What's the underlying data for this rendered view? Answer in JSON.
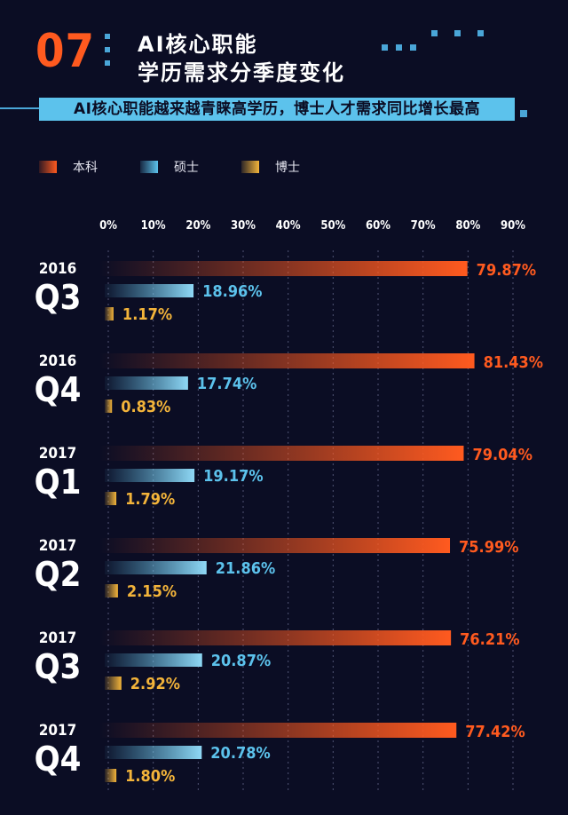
{
  "header": {
    "number": "07",
    "title_line1": "AI核心职能",
    "title_line2": "学历需求分季度变化",
    "subtitle": "AI核心职能越来越青睐高学历，博士人才需求同比增长最高"
  },
  "colors": {
    "background": "#0b0d24",
    "accent_orange": "#ff5a1f",
    "accent_blue": "#5cc2ec",
    "accent_gold": "#f3b43a"
  },
  "legend": [
    {
      "label": "本科",
      "color": "#ff5a1f"
    },
    {
      "label": "硕士",
      "color": "#5cc2ec"
    },
    {
      "label": "博士",
      "color": "#f3b43a"
    }
  ],
  "chart_data": {
    "type": "bar",
    "orientation": "horizontal",
    "xlim": [
      0,
      90
    ],
    "xticks": [
      "0%",
      "10%",
      "20%",
      "30%",
      "40%",
      "50%",
      "60%",
      "70%",
      "80%",
      "90%"
    ],
    "series_names": [
      "本科",
      "硕士",
      "博士"
    ],
    "categories": [
      {
        "year": "2016",
        "quarter": "Q3",
        "values": [
          79.87,
          18.96,
          1.17
        ],
        "labels": [
          "79.87%",
          "18.96%",
          "1.17%"
        ]
      },
      {
        "year": "2016",
        "quarter": "Q4",
        "values": [
          81.43,
          17.74,
          0.83
        ],
        "labels": [
          "81.43%",
          "17.74%",
          "0.83%"
        ]
      },
      {
        "year": "2017",
        "quarter": "Q1",
        "values": [
          79.04,
          19.17,
          1.79
        ],
        "labels": [
          "79.04%",
          "19.17%",
          "1.79%"
        ]
      },
      {
        "year": "2017",
        "quarter": "Q2",
        "values": [
          75.99,
          21.86,
          2.15
        ],
        "labels": [
          "75.99%",
          "21.86%",
          "2.15%"
        ]
      },
      {
        "year": "2017",
        "quarter": "Q3",
        "values": [
          76.21,
          20.87,
          2.92
        ],
        "labels": [
          "76.21%",
          "20.87%",
          "2.92%"
        ]
      },
      {
        "year": "2017",
        "quarter": "Q4",
        "values": [
          77.42,
          20.78,
          1.8
        ],
        "labels": [
          "77.42%",
          "20.78%",
          "1.80%"
        ]
      }
    ]
  }
}
